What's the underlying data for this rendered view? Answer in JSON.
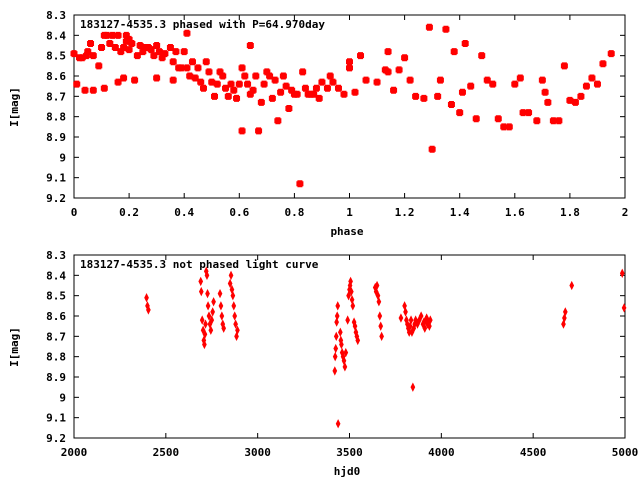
{
  "chart_data": [
    {
      "type": "scatter",
      "title": "183127-4535.3 phased with P=64.970day",
      "xlabel": "phase",
      "ylabel": "I[mag]",
      "xlim": [
        0,
        2
      ],
      "ylim": [
        9.2,
        8.3
      ],
      "y_inverted": true,
      "xticks": [
        "0",
        "0.2",
        "0.4",
        "0.6",
        "0.8",
        "1",
        "1.2",
        "1.4",
        "1.6",
        "1.8",
        "2"
      ],
      "xtick_values": [
        0,
        0.2,
        0.4,
        0.6,
        0.8,
        1,
        1.2,
        1.4,
        1.6,
        1.8,
        2
      ],
      "yticks": [
        "8.3",
        "8.4",
        "8.5",
        "8.6",
        "8.7",
        "8.8",
        "8.9",
        "9",
        "9.1",
        "9.2"
      ],
      "ytick_values": [
        8.3,
        8.4,
        8.5,
        8.6,
        8.7,
        8.8,
        8.9,
        9.0,
        9.1,
        9.2
      ],
      "grid": false,
      "marker": "star",
      "color": "#ff0000",
      "points": [
        [
          0.0,
          8.49
        ],
        [
          0.01,
          8.64
        ],
        [
          0.02,
          8.51
        ],
        [
          0.03,
          8.51
        ],
        [
          0.04,
          8.67
        ],
        [
          0.045,
          8.5
        ],
        [
          0.05,
          8.48
        ],
        [
          0.06,
          8.44
        ],
        [
          0.07,
          8.5
        ],
        [
          0.07,
          8.67
        ],
        [
          0.09,
          8.55
        ],
        [
          0.1,
          8.46
        ],
        [
          0.11,
          8.4
        ],
        [
          0.11,
          8.66
        ],
        [
          0.12,
          8.4
        ],
        [
          0.13,
          8.44
        ],
        [
          0.14,
          8.4
        ],
        [
          0.15,
          8.46
        ],
        [
          0.16,
          8.4
        ],
        [
          0.16,
          8.63
        ],
        [
          0.18,
          8.61
        ],
        [
          0.18,
          8.46
        ],
        [
          0.17,
          8.48
        ],
        [
          0.19,
          8.4
        ],
        [
          0.19,
          8.43
        ],
        [
          0.2,
          8.42
        ],
        [
          0.2,
          8.47
        ],
        [
          0.21,
          8.44
        ],
        [
          0.22,
          8.62
        ],
        [
          0.23,
          8.5
        ],
        [
          0.24,
          8.45
        ],
        [
          0.25,
          8.48
        ],
        [
          0.26,
          8.46
        ],
        [
          0.27,
          8.46
        ],
        [
          0.28,
          8.47
        ],
        [
          0.29,
          8.5
        ],
        [
          0.3,
          8.61
        ],
        [
          0.3,
          8.45
        ],
        [
          0.31,
          8.48
        ],
        [
          0.32,
          8.51
        ],
        [
          0.33,
          8.49
        ],
        [
          0.35,
          8.46
        ],
        [
          0.36,
          8.53
        ],
        [
          0.36,
          8.62
        ],
        [
          0.37,
          8.48
        ],
        [
          0.38,
          8.56
        ],
        [
          0.39,
          8.56
        ],
        [
          0.4,
          8.48
        ],
        [
          0.41,
          8.39
        ],
        [
          0.41,
          8.56
        ],
        [
          0.42,
          8.6
        ],
        [
          0.43,
          8.53
        ],
        [
          0.44,
          8.61
        ],
        [
          0.45,
          8.56
        ],
        [
          0.46,
          8.63
        ],
        [
          0.47,
          8.66
        ],
        [
          0.48,
          8.53
        ],
        [
          0.49,
          8.58
        ],
        [
          0.5,
          8.63
        ],
        [
          0.51,
          8.7
        ],
        [
          0.52,
          8.64
        ],
        [
          0.53,
          8.58
        ],
        [
          0.54,
          8.6
        ],
        [
          0.55,
          8.66
        ],
        [
          0.56,
          8.7
        ],
        [
          0.57,
          8.64
        ],
        [
          0.58,
          8.67
        ],
        [
          0.59,
          8.71
        ],
        [
          0.6,
          8.64
        ],
        [
          0.61,
          8.87
        ],
        [
          0.61,
          8.56
        ],
        [
          0.62,
          8.6
        ],
        [
          0.63,
          8.64
        ],
        [
          0.64,
          8.69
        ],
        [
          0.64,
          8.45
        ],
        [
          0.65,
          8.67
        ],
        [
          0.66,
          8.6
        ],
        [
          0.67,
          8.87
        ],
        [
          0.68,
          8.73
        ],
        [
          0.69,
          8.64
        ],
        [
          0.7,
          8.58
        ],
        [
          0.71,
          8.6
        ],
        [
          0.72,
          8.71
        ],
        [
          0.73,
          8.62
        ],
        [
          0.74,
          8.82
        ],
        [
          0.75,
          8.68
        ],
        [
          0.76,
          8.6
        ],
        [
          0.77,
          8.65
        ],
        [
          0.78,
          8.76
        ],
        [
          0.79,
          8.67
        ],
        [
          0.8,
          8.69
        ],
        [
          0.81,
          8.69
        ],
        [
          0.82,
          9.13
        ],
        [
          0.83,
          8.58
        ],
        [
          0.84,
          8.66
        ],
        [
          0.85,
          8.69
        ],
        [
          0.86,
          8.69
        ],
        [
          0.87,
          8.69
        ],
        [
          0.88,
          8.66
        ],
        [
          0.89,
          8.71
        ],
        [
          0.9,
          8.63
        ],
        [
          0.92,
          8.66
        ],
        [
          0.93,
          8.6
        ],
        [
          0.94,
          8.63
        ],
        [
          0.96,
          8.66
        ],
        [
          0.98,
          8.69
        ],
        [
          1.0,
          8.56
        ],
        [
          1.0,
          8.53
        ],
        [
          1.02,
          8.68
        ],
        [
          1.04,
          8.5
        ],
        [
          1.06,
          8.62
        ],
        [
          1.1,
          8.63
        ],
        [
          1.13,
          8.57
        ],
        [
          1.14,
          8.58
        ],
        [
          1.14,
          8.48
        ],
        [
          1.16,
          8.67
        ],
        [
          1.18,
          8.57
        ],
        [
          1.2,
          8.51
        ],
        [
          1.22,
          8.62
        ],
        [
          1.24,
          8.7
        ],
        [
          1.27,
          8.71
        ],
        [
          1.29,
          8.36
        ],
        [
          1.3,
          8.96
        ],
        [
          1.32,
          8.7
        ],
        [
          1.33,
          8.62
        ],
        [
          1.35,
          8.37
        ],
        [
          1.37,
          8.74
        ],
        [
          1.38,
          8.48
        ],
        [
          1.4,
          8.78
        ],
        [
          1.41,
          8.68
        ],
        [
          1.42,
          8.44
        ],
        [
          1.44,
          8.65
        ],
        [
          1.46,
          8.81
        ],
        [
          1.48,
          8.5
        ],
        [
          1.5,
          8.62
        ],
        [
          1.52,
          8.64
        ],
        [
          1.54,
          8.81
        ],
        [
          1.56,
          8.85
        ],
        [
          1.58,
          8.85
        ],
        [
          1.6,
          8.64
        ],
        [
          1.62,
          8.61
        ],
        [
          1.63,
          8.78
        ],
        [
          1.65,
          8.78
        ],
        [
          1.68,
          8.82
        ],
        [
          1.7,
          8.62
        ],
        [
          1.71,
          8.68
        ],
        [
          1.72,
          8.73
        ],
        [
          1.74,
          8.82
        ],
        [
          1.76,
          8.82
        ],
        [
          1.78,
          8.55
        ],
        [
          1.8,
          8.72
        ],
        [
          1.82,
          8.73
        ],
        [
          1.84,
          8.7
        ],
        [
          1.86,
          8.65
        ],
        [
          1.88,
          8.61
        ],
        [
          1.9,
          8.64
        ],
        [
          1.92,
          8.54
        ],
        [
          1.95,
          8.49
        ]
      ]
    },
    {
      "type": "scatter",
      "title": "183127-4535.3 not phased light curve",
      "xlabel": "hjd0",
      "ylabel": "I[mag]",
      "xlim": [
        2000,
        5000
      ],
      "ylim": [
        9.2,
        8.3
      ],
      "y_inverted": true,
      "xticks": [
        "2000",
        "2500",
        "3000",
        "3500",
        "4000",
        "4500",
        "5000"
      ],
      "xtick_values": [
        2000,
        2500,
        3000,
        3500,
        4000,
        4500,
        5000
      ],
      "yticks": [
        "8.3",
        "8.4",
        "8.5",
        "8.6",
        "8.7",
        "8.8",
        "8.9",
        "9",
        "9.1",
        "9.2"
      ],
      "ytick_values": [
        8.3,
        8.4,
        8.5,
        8.6,
        8.7,
        8.8,
        8.9,
        9.0,
        9.1,
        9.2
      ],
      "grid": false,
      "marker": "diamond",
      "color": "#ff0000",
      "points": [
        [
          2395,
          8.51
        ],
        [
          2400,
          8.55
        ],
        [
          2405,
          8.57
        ],
        [
          2690,
          8.43
        ],
        [
          2693,
          8.48
        ],
        [
          2698,
          8.62
        ],
        [
          2703,
          8.67
        ],
        [
          2707,
          8.72
        ],
        [
          2710,
          8.74
        ],
        [
          2713,
          8.69
        ],
        [
          2716,
          8.64
        ],
        [
          2720,
          8.38
        ],
        [
          2724,
          8.4
        ],
        [
          2727,
          8.49
        ],
        [
          2730,
          8.55
        ],
        [
          2735,
          8.6
        ],
        [
          2740,
          8.64
        ],
        [
          2745,
          8.67
        ],
        [
          2750,
          8.62
        ],
        [
          2755,
          8.58
        ],
        [
          2760,
          8.53
        ],
        [
          2795,
          8.49
        ],
        [
          2800,
          8.55
        ],
        [
          2805,
          8.6
        ],
        [
          2810,
          8.64
        ],
        [
          2815,
          8.66
        ],
        [
          2850,
          8.44
        ],
        [
          2855,
          8.4
        ],
        [
          2860,
          8.47
        ],
        [
          2865,
          8.5
        ],
        [
          2870,
          8.55
        ],
        [
          2875,
          8.6
        ],
        [
          2880,
          8.64
        ],
        [
          2885,
          8.7
        ],
        [
          2890,
          8.67
        ],
        [
          3420,
          8.87
        ],
        [
          3422,
          8.8
        ],
        [
          3425,
          8.76
        ],
        [
          3428,
          8.7
        ],
        [
          3430,
          8.63
        ],
        [
          3433,
          8.6
        ],
        [
          3436,
          8.55
        ],
        [
          3438,
          9.13
        ],
        [
          3450,
          8.68
        ],
        [
          3453,
          8.72
        ],
        [
          3456,
          8.74
        ],
        [
          3460,
          8.78
        ],
        [
          3465,
          8.8
        ],
        [
          3470,
          8.82
        ],
        [
          3475,
          8.85
        ],
        [
          3480,
          8.78
        ],
        [
          3490,
          8.62
        ],
        [
          3495,
          8.5
        ],
        [
          3500,
          8.47
        ],
        [
          3503,
          8.45
        ],
        [
          3506,
          8.43
        ],
        [
          3510,
          8.48
        ],
        [
          3514,
          8.52
        ],
        [
          3518,
          8.55
        ],
        [
          3525,
          8.63
        ],
        [
          3530,
          8.65
        ],
        [
          3535,
          8.68
        ],
        [
          3540,
          8.7
        ],
        [
          3545,
          8.72
        ],
        [
          3640,
          8.46
        ],
        [
          3645,
          8.48
        ],
        [
          3650,
          8.45
        ],
        [
          3655,
          8.5
        ],
        [
          3660,
          8.53
        ],
        [
          3665,
          8.6
        ],
        [
          3670,
          8.65
        ],
        [
          3675,
          8.7
        ],
        [
          3780,
          8.61
        ],
        [
          3800,
          8.55
        ],
        [
          3805,
          8.58
        ],
        [
          3810,
          8.62
        ],
        [
          3815,
          8.64
        ],
        [
          3820,
          8.66
        ],
        [
          3825,
          8.68
        ],
        [
          3830,
          8.65
        ],
        [
          3835,
          8.62
        ],
        [
          3840,
          8.68
        ],
        [
          3845,
          8.95
        ],
        [
          3850,
          8.66
        ],
        [
          3855,
          8.64
        ],
        [
          3860,
          8.62
        ],
        [
          3870,
          8.64
        ],
        [
          3880,
          8.62
        ],
        [
          3890,
          8.6
        ],
        [
          3900,
          8.64
        ],
        [
          3905,
          8.63
        ],
        [
          3910,
          8.66
        ],
        [
          3915,
          8.62
        ],
        [
          3920,
          8.61
        ],
        [
          3925,
          8.64
        ],
        [
          3930,
          8.63
        ],
        [
          3935,
          8.65
        ],
        [
          3940,
          8.62
        ],
        [
          4665,
          8.64
        ],
        [
          4670,
          8.61
        ],
        [
          4675,
          8.58
        ],
        [
          4710,
          8.45
        ],
        [
          4985,
          8.39
        ],
        [
          4995,
          8.56
        ]
      ]
    }
  ]
}
